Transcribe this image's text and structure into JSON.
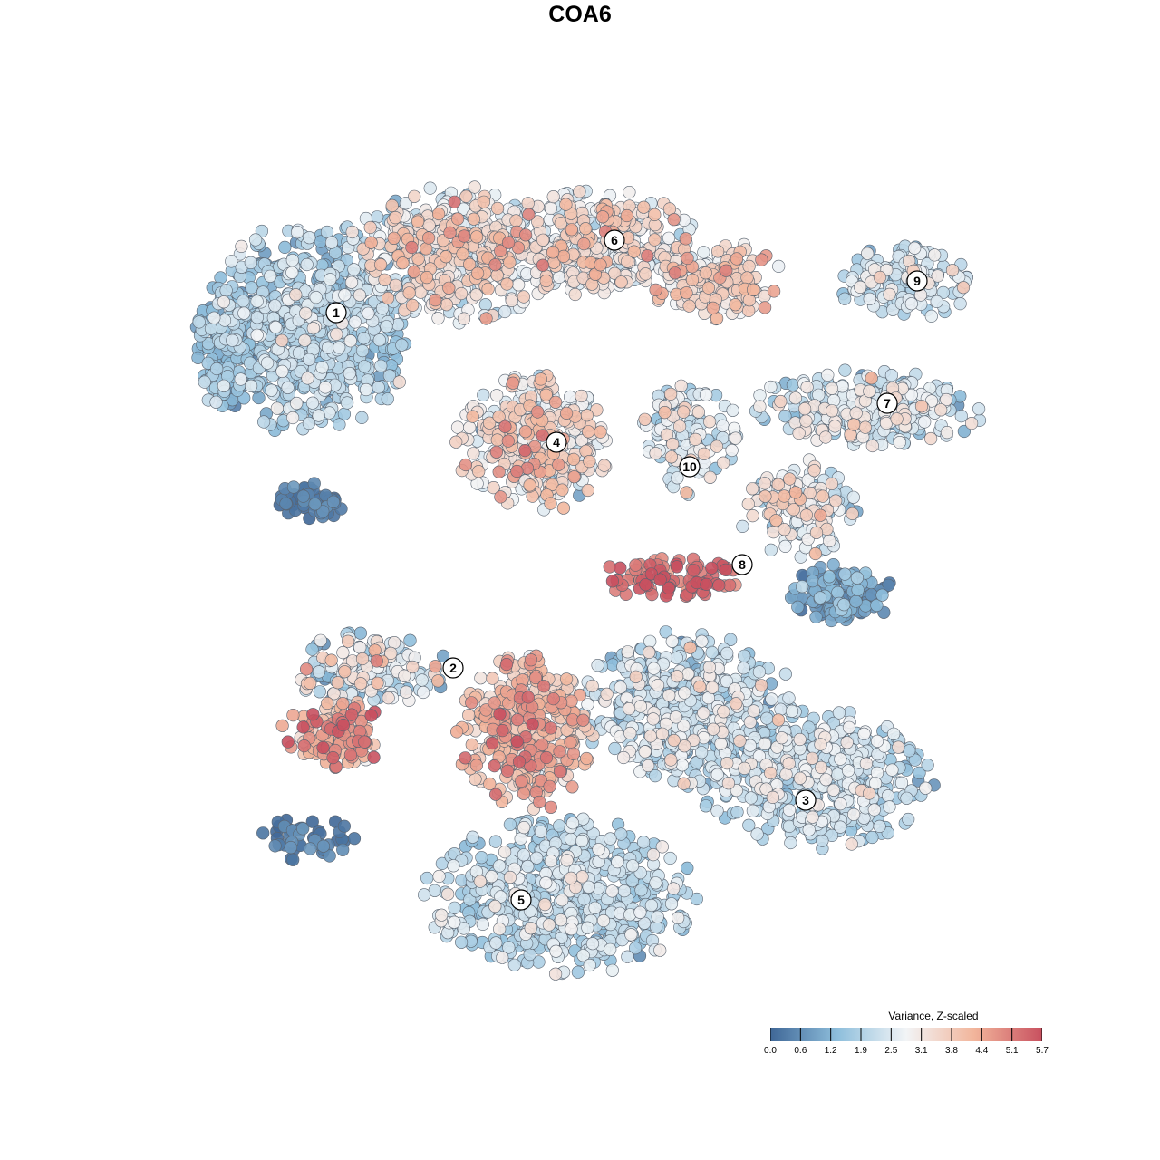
{
  "chart_data": {
    "type": "scatter",
    "title": "COA6",
    "legend": {
      "title": "Variance, Z-scaled",
      "position": "bottom-right",
      "ticks": [
        "0.0",
        "0.6",
        "1.2",
        "1.9",
        "2.5",
        "3.1",
        "3.8",
        "4.4",
        "5.1",
        "5.7"
      ],
      "range": [
        0.0,
        5.7
      ]
    },
    "colors": {
      "low": "#3f6797",
      "mid_low": "#8fbfdc",
      "mid": "#f2f4f6",
      "mid_high": "#f2b59b",
      "high": "#c8505f"
    },
    "clusters": [
      {
        "label": "1"
      },
      {
        "label": "2"
      },
      {
        "label": "3"
      },
      {
        "label": "4"
      },
      {
        "label": "5"
      },
      {
        "label": "6"
      },
      {
        "label": "7"
      },
      {
        "label": "8"
      },
      {
        "label": "9"
      },
      {
        "label": "10"
      }
    ],
    "axes": {
      "visible": false
    },
    "grid": false
  }
}
